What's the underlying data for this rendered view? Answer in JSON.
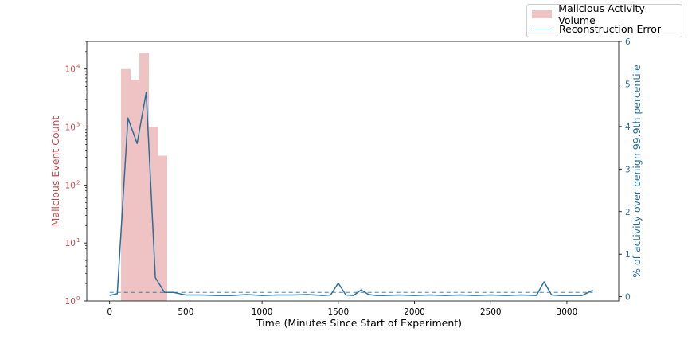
{
  "chart_data": {
    "type": "bar+line",
    "xlabel": "Time (Minutes Since Start of Experiment)",
    "ylabel_left": "Malicious Event Count",
    "ylabel_right": "% of activity over benign 99.9th percentile",
    "x_ticks": [
      0,
      500,
      1000,
      1500,
      2000,
      2500,
      3000
    ],
    "x_tick_labels": [
      "0",
      "500",
      "1000",
      "1500",
      "2000",
      "2500",
      "3000"
    ],
    "xlim": [
      -150,
      3340
    ],
    "y_left_scale": "log",
    "y_left_ticks": [
      {
        "value": 1,
        "base": "10",
        "exp": "0"
      },
      {
        "value": 10,
        "base": "10",
        "exp": "1"
      },
      {
        "value": 100,
        "base": "10",
        "exp": "2"
      },
      {
        "value": 1000,
        "base": "10",
        "exp": "3"
      },
      {
        "value": 10000,
        "base": "10",
        "exp": "4"
      }
    ],
    "ylim_left": [
      1,
      30000
    ],
    "y_right_ticks": [
      0,
      1,
      2,
      3,
      4,
      5,
      6
    ],
    "ylim_right": [
      -0.1,
      6.0
    ],
    "bar_width": 30,
    "series": [
      {
        "name": "Malicious Activity Volume",
        "kind": "bar",
        "color": "#efc3c3",
        "axis": "left",
        "x": [
          90,
          120,
          150,
          180,
          210,
          240,
          270,
          300,
          330,
          360
        ],
        "values": [
          10000,
          10000,
          6500,
          6500,
          19000,
          19000,
          1000,
          1000,
          320,
          320
        ]
      },
      {
        "name": "Reconstruction Error",
        "kind": "line",
        "color": "#2a6f9a",
        "axis": "right",
        "x": [
          0,
          50,
          120,
          180,
          240,
          300,
          360,
          420,
          500,
          600,
          700,
          800,
          900,
          1000,
          1100,
          1200,
          1300,
          1400,
          1450,
          1500,
          1550,
          1600,
          1650,
          1700,
          1750,
          1800,
          1900,
          2000,
          2100,
          2200,
          2300,
          2400,
          2500,
          2600,
          2700,
          2800,
          2850,
          2900,
          2950,
          3000,
          3100,
          3170
        ],
        "values": [
          0.03,
          0.07,
          4.2,
          3.6,
          4.8,
          0.45,
          0.1,
          0.1,
          0.04,
          0.04,
          0.03,
          0.03,
          0.05,
          0.03,
          0.04,
          0.04,
          0.05,
          0.03,
          0.04,
          0.32,
          0.04,
          0.03,
          0.16,
          0.05,
          0.03,
          0.03,
          0.04,
          0.03,
          0.04,
          0.03,
          0.04,
          0.03,
          0.04,
          0.03,
          0.04,
          0.03,
          0.35,
          0.04,
          0.03,
          0.03,
          0.03,
          0.15
        ]
      }
    ],
    "reference_line": {
      "axis": "right",
      "y": 0.1,
      "style": "dashed"
    },
    "legend_position": "top-right"
  },
  "colors": {
    "left_axis": "#c44e52",
    "right_axis": "#2a6f9a",
    "bar": "#efc3c3",
    "line": "#2a6f9a"
  }
}
